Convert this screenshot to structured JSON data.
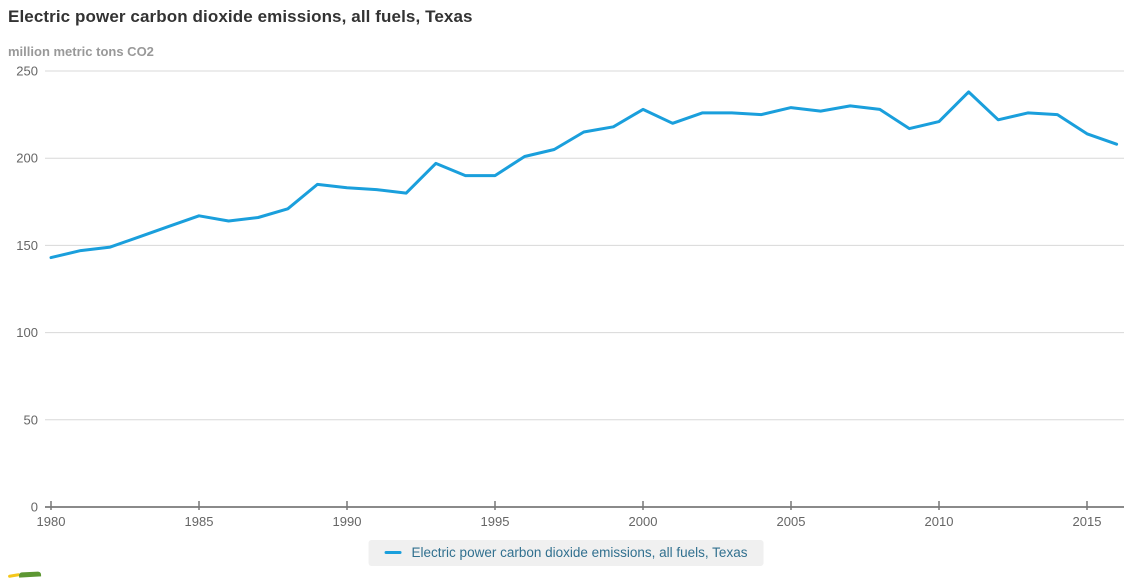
{
  "header": {
    "title": "Electric power carbon dioxide emissions, all fuels, Texas",
    "subtitle": "million metric tons CO2"
  },
  "legend": {
    "label": "Electric power carbon dioxide emissions, all fuels, Texas",
    "marker_color": "#1a9fdc",
    "background": "#f0f0f0",
    "text_color": "#31708f"
  },
  "logo": {
    "name": "eia-logo-partial",
    "yellow": "#f5c71a",
    "green": "#5c9732"
  },
  "chart_data": {
    "type": "line",
    "title": "Electric power carbon dioxide emissions, all fuels, Texas",
    "xlabel": "",
    "ylabel": "million metric tons CO2",
    "x": [
      1980,
      1981,
      1982,
      1983,
      1984,
      1985,
      1986,
      1987,
      1988,
      1989,
      1990,
      1991,
      1992,
      1993,
      1994,
      1995,
      1996,
      1997,
      1998,
      1999,
      2000,
      2001,
      2002,
      2003,
      2004,
      2005,
      2006,
      2007,
      2008,
      2009,
      2010,
      2011,
      2012,
      2013,
      2014,
      2015,
      2016
    ],
    "series": [
      {
        "name": "Electric power carbon dioxide emissions, all fuels, Texas",
        "color": "#1a9fdc",
        "values": [
          143,
          147,
          149,
          155,
          161,
          167,
          164,
          166,
          171,
          185,
          183,
          182,
          180,
          197,
          190,
          190,
          201,
          205,
          215,
          218,
          228,
          220,
          226,
          226,
          225,
          229,
          227,
          230,
          228,
          217,
          221,
          238,
          222,
          226,
          225,
          214,
          208
        ]
      }
    ],
    "ylim": [
      0,
      250
    ],
    "yticks": [
      0,
      50,
      100,
      150,
      200,
      250
    ],
    "xticks": [
      1980,
      1985,
      1990,
      1995,
      2000,
      2005,
      2010,
      2015
    ],
    "grid": "horizontal",
    "legend_position": "bottom",
    "grid_color": "#d8d8d8",
    "axis_color": "#8a8a8a",
    "tick_color": "#777777",
    "tick_label_color": "#666666"
  }
}
